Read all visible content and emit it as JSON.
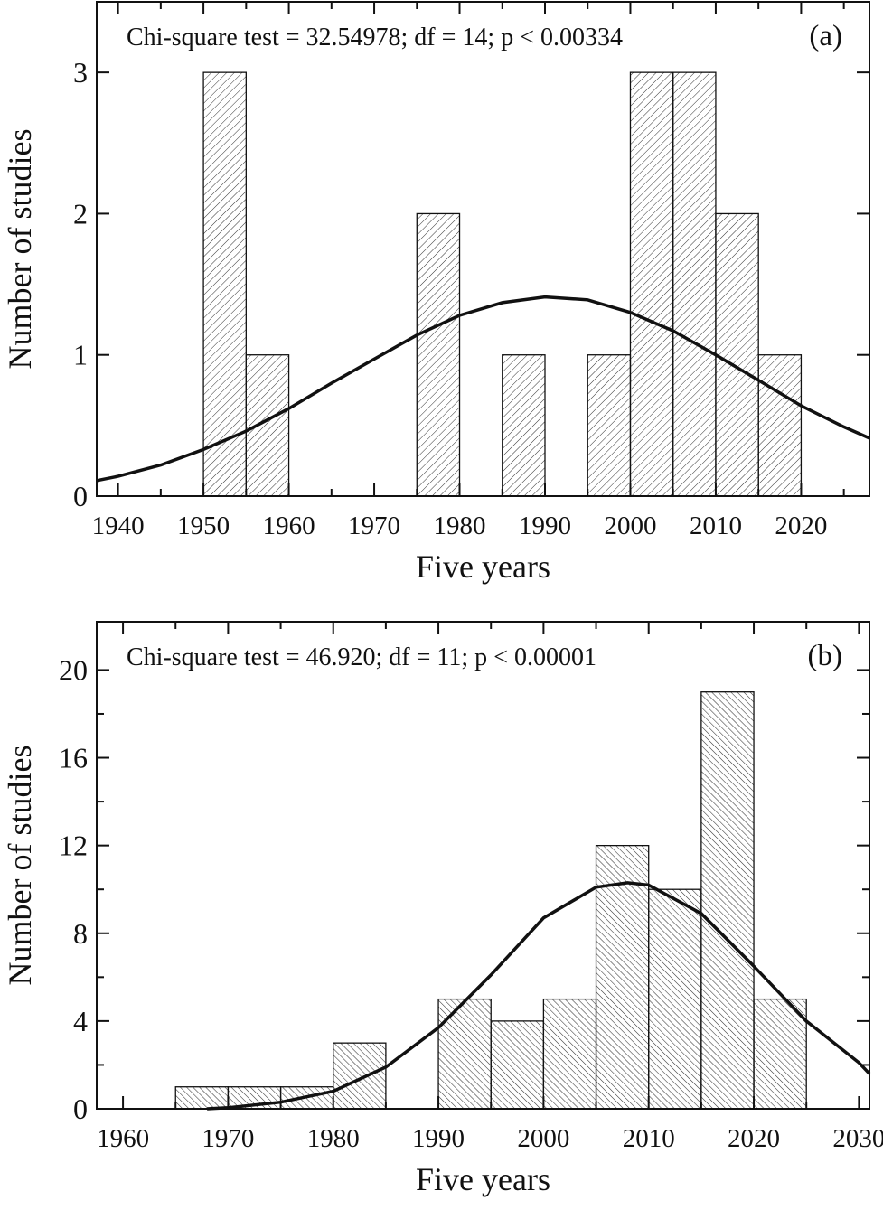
{
  "chart_data": [
    {
      "type": "histogram",
      "annotation": "Chi-square test = 32.54978;  df = 14;  p < 0.00334",
      "panel_label": "(a)",
      "xlabel": "Five years",
      "ylabel": "Number of studies",
      "bins": [
        1950,
        1955,
        1960,
        1965,
        1970,
        1975,
        1980,
        1985,
        1990,
        1995,
        2000,
        2005,
        2010,
        2015,
        2020
      ],
      "values": [
        3,
        1,
        0,
        0,
        0,
        2,
        0,
        1,
        0,
        1,
        3,
        3,
        2,
        1
      ],
      "fit": {
        "x": [
          1937.5,
          1940,
          1945,
          1950,
          1955,
          1960,
          1965,
          1970,
          1975,
          1980,
          1985,
          1990,
          1995,
          2000,
          2005,
          2010,
          2015,
          2020,
          2025,
          2028
        ],
        "y": [
          0.11,
          0.14,
          0.22,
          0.33,
          0.46,
          0.62,
          0.8,
          0.97,
          1.14,
          1.28,
          1.37,
          1.41,
          1.39,
          1.3,
          1.17,
          1.0,
          0.82,
          0.64,
          0.49,
          0.41
        ]
      },
      "xlim": [
        1937.5,
        2028
      ],
      "xticks": [
        1940,
        1950,
        1960,
        1970,
        1980,
        1990,
        2000,
        2010,
        2020
      ],
      "xminor_ticks": [
        1945,
        1955,
        1965,
        1975,
        1985,
        1995,
        2005,
        2015,
        2025
      ],
      "ylim": [
        0,
        3.5
      ],
      "yticks": [
        0,
        1,
        2,
        3
      ],
      "yminor_ticks": []
    },
    {
      "type": "histogram",
      "annotation": "Chi-square test = 46.920;  df = 11;  p < 0.00001",
      "panel_label": "(b)",
      "xlabel": "Five years",
      "ylabel": "Number of studies",
      "bins": [
        1965,
        1970,
        1975,
        1980,
        1985,
        1990,
        1995,
        2000,
        2005,
        2010,
        2015,
        2020,
        2025
      ],
      "values": [
        1,
        1,
        1,
        3,
        0,
        5,
        4,
        5,
        12,
        10,
        19,
        5
      ],
      "fit": {
        "x": [
          1968,
          1970,
          1975,
          1980,
          1985,
          1990,
          1995,
          2000,
          2005,
          2008,
          2010,
          2015,
          2020,
          2025,
          2030,
          2031
        ],
        "y": [
          0,
          0.05,
          0.3,
          0.8,
          1.9,
          3.7,
          6.1,
          8.7,
          10.1,
          10.3,
          10.2,
          8.9,
          6.5,
          4.0,
          2.1,
          1.6
        ]
      },
      "xlim": [
        1957.5,
        2031
      ],
      "xticks": [
        1960,
        1970,
        1980,
        1990,
        2000,
        2010,
        2020,
        2030
      ],
      "xminor_ticks": [
        1965,
        1975,
        1985,
        1995,
        2005,
        2015,
        2025
      ],
      "ylim": [
        0,
        22.2
      ],
      "yticks": [
        0,
        4,
        8,
        12,
        16,
        20
      ],
      "yminor_ticks": [
        2,
        6,
        10,
        14,
        18
      ]
    }
  ]
}
